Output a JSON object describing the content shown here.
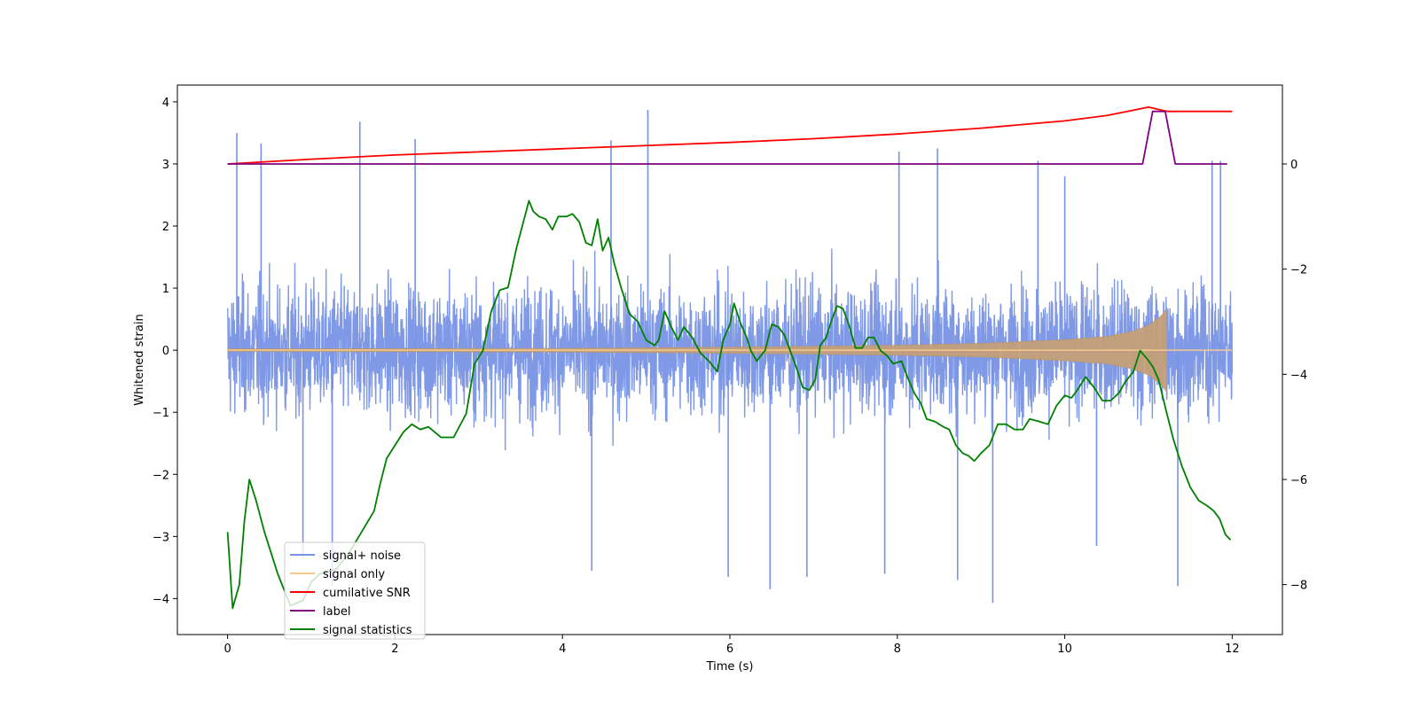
{
  "chart_data": {
    "type": "line",
    "title": "",
    "xlabel": "Time (s)",
    "ylabel": "Whitened strain",
    "xlim": [
      -0.6,
      12.6
    ],
    "ylim": [
      -4.58,
      4.27
    ],
    "y2lim": [
      -8.95,
      1.5
    ],
    "x_ticks": [
      0,
      2,
      4,
      6,
      8,
      10,
      12
    ],
    "y_ticks": [
      4,
      3,
      2,
      1,
      0,
      -1,
      -2,
      -3,
      -4
    ],
    "y2_ticks": [
      0,
      -2,
      -4,
      -6,
      -8
    ],
    "x_tick_labels": [
      "0",
      "2",
      "4",
      "6",
      "8",
      "10",
      "12"
    ],
    "y_tick_labels": [
      "4",
      "3",
      "2",
      "1",
      "0",
      "−1",
      "−2",
      "−3",
      "−4"
    ],
    "y2_tick_labels": [
      "0",
      "−2",
      "−4",
      "−6",
      "−8"
    ],
    "legend": {
      "location": "lower-left",
      "entries": [
        {
          "label": "signal+ noise",
          "color": "#7893e6"
        },
        {
          "label": "signal only",
          "color": "#f5c98c"
        },
        {
          "label": "cumilative SNR",
          "color": "#ff0000"
        },
        {
          "label": "label",
          "color": "#800080"
        },
        {
          "label": "signal statistics",
          "color": "#008000"
        }
      ]
    },
    "series": [
      {
        "name": "signal+ noise",
        "axis": "left",
        "color": "#7893e6",
        "description": "dense noisy strain trace, roughly -2 to 2 with spikes up to about 3.9 and down to about -4.1",
        "spikes": [
          [
            0.11,
            3.5
          ],
          [
            0.4,
            3.33
          ],
          [
            1.58,
            3.68
          ],
          [
            2.24,
            3.4
          ],
          [
            4.58,
            3.38
          ],
          [
            5.02,
            3.87
          ],
          [
            8.02,
            3.2
          ],
          [
            8.48,
            3.25
          ],
          [
            9.68,
            3.05
          ],
          [
            10.0,
            2.8
          ],
          [
            11.76,
            3.05
          ],
          [
            11.86,
            3.05
          ],
          [
            0.9,
            -3.35
          ],
          [
            1.25,
            -3.8
          ],
          [
            4.35,
            -3.55
          ],
          [
            5.98,
            -3.65
          ],
          [
            6.48,
            -3.85
          ],
          [
            6.92,
            -3.65
          ],
          [
            7.85,
            -3.6
          ],
          [
            8.72,
            -3.7
          ],
          [
            9.14,
            -4.07
          ],
          [
            10.38,
            -3.15
          ],
          [
            11.35,
            -3.8
          ]
        ]
      },
      {
        "name": "signal only",
        "axis": "left",
        "color": "#f5c98c",
        "description": "chirp: near-zero amplitude growing to about 0.7 at 11.22 s then zero",
        "envelope": [
          [
            0,
            0.02
          ],
          [
            2,
            0.025
          ],
          [
            4,
            0.03
          ],
          [
            6,
            0.05
          ],
          [
            8,
            0.08
          ],
          [
            9,
            0.11
          ],
          [
            10,
            0.17
          ],
          [
            10.5,
            0.22
          ],
          [
            10.8,
            0.3
          ],
          [
            11.0,
            0.4
          ],
          [
            11.15,
            0.55
          ],
          [
            11.22,
            0.68
          ],
          [
            11.23,
            0
          ],
          [
            12,
            0
          ]
        ]
      },
      {
        "name": "cumilative SNR",
        "axis": "right",
        "color": "#ff0000",
        "points": [
          [
            0,
            0.0
          ],
          [
            1,
            0.09
          ],
          [
            2,
            0.17
          ],
          [
            3,
            0.23
          ],
          [
            4,
            0.29
          ],
          [
            5,
            0.35
          ],
          [
            6,
            0.41
          ],
          [
            7,
            0.48
          ],
          [
            8,
            0.57
          ],
          [
            9,
            0.68
          ],
          [
            10,
            0.82
          ],
          [
            10.5,
            0.92
          ],
          [
            11,
            1.08
          ],
          [
            11.22,
            1.0
          ],
          [
            12,
            1.0
          ]
        ]
      },
      {
        "name": "label",
        "axis": "right",
        "color": "#800080",
        "points": [
          [
            0,
            0
          ],
          [
            10.93,
            0
          ],
          [
            11.05,
            1
          ],
          [
            11.2,
            1
          ],
          [
            11.32,
            0
          ],
          [
            11.94,
            0
          ]
        ]
      },
      {
        "name": "signal statistics",
        "axis": "right",
        "color": "#008000",
        "points": [
          [
            0,
            -7.0
          ],
          [
            0.06,
            -8.45
          ],
          [
            0.14,
            -8.0
          ],
          [
            0.2,
            -6.8
          ],
          [
            0.26,
            -6.0
          ],
          [
            0.34,
            -6.4
          ],
          [
            0.44,
            -7.0
          ],
          [
            0.6,
            -7.8
          ],
          [
            0.75,
            -8.4
          ],
          [
            0.9,
            -8.3
          ],
          [
            1.0,
            -7.95
          ],
          [
            1.1,
            -7.8
          ],
          [
            1.3,
            -7.7
          ],
          [
            1.45,
            -7.4
          ],
          [
            1.6,
            -7.0
          ],
          [
            1.75,
            -6.6
          ],
          [
            1.82,
            -6.1
          ],
          [
            1.9,
            -5.6
          ],
          [
            2.0,
            -5.35
          ],
          [
            2.1,
            -5.1
          ],
          [
            2.2,
            -4.95
          ],
          [
            2.3,
            -5.05
          ],
          [
            2.4,
            -5.0
          ],
          [
            2.55,
            -5.2
          ],
          [
            2.7,
            -5.2
          ],
          [
            2.85,
            -4.75
          ],
          [
            2.95,
            -3.8
          ],
          [
            3.05,
            -3.55
          ],
          [
            3.15,
            -2.8
          ],
          [
            3.25,
            -2.4
          ],
          [
            3.35,
            -2.35
          ],
          [
            3.45,
            -1.6
          ],
          [
            3.55,
            -1.0
          ],
          [
            3.6,
            -0.7
          ],
          [
            3.65,
            -0.9
          ],
          [
            3.72,
            -1.0
          ],
          [
            3.8,
            -1.05
          ],
          [
            3.88,
            -1.25
          ],
          [
            3.95,
            -1.0
          ],
          [
            4.05,
            -1.0
          ],
          [
            4.12,
            -0.95
          ],
          [
            4.2,
            -1.1
          ],
          [
            4.28,
            -1.5
          ],
          [
            4.35,
            -1.55
          ],
          [
            4.42,
            -1.05
          ],
          [
            4.48,
            -1.65
          ],
          [
            4.55,
            -1.4
          ],
          [
            4.62,
            -1.9
          ],
          [
            4.7,
            -2.35
          ],
          [
            4.8,
            -2.85
          ],
          [
            4.9,
            -3.0
          ],
          [
            5.0,
            -3.35
          ],
          [
            5.1,
            -3.45
          ],
          [
            5.15,
            -3.35
          ],
          [
            5.22,
            -2.8
          ],
          [
            5.3,
            -3.1
          ],
          [
            5.38,
            -3.35
          ],
          [
            5.45,
            -3.1
          ],
          [
            5.55,
            -3.3
          ],
          [
            5.65,
            -3.6
          ],
          [
            5.75,
            -3.75
          ],
          [
            5.85,
            -3.95
          ],
          [
            5.92,
            -3.35
          ],
          [
            6.0,
            -3.05
          ],
          [
            6.05,
            -2.65
          ],
          [
            6.12,
            -3.0
          ],
          [
            6.2,
            -3.3
          ],
          [
            6.25,
            -3.55
          ],
          [
            6.32,
            -3.75
          ],
          [
            6.42,
            -3.55
          ],
          [
            6.5,
            -3.05
          ],
          [
            6.58,
            -3.1
          ],
          [
            6.65,
            -3.25
          ],
          [
            6.72,
            -3.55
          ],
          [
            6.8,
            -3.9
          ],
          [
            6.87,
            -4.25
          ],
          [
            6.95,
            -4.3
          ],
          [
            7.02,
            -4.1
          ],
          [
            7.08,
            -3.45
          ],
          [
            7.15,
            -3.3
          ],
          [
            7.22,
            -2.95
          ],
          [
            7.28,
            -2.7
          ],
          [
            7.35,
            -2.75
          ],
          [
            7.42,
            -3.05
          ],
          [
            7.5,
            -3.5
          ],
          [
            7.58,
            -3.5
          ],
          [
            7.65,
            -3.3
          ],
          [
            7.72,
            -3.3
          ],
          [
            7.8,
            -3.55
          ],
          [
            7.88,
            -3.65
          ],
          [
            7.95,
            -3.8
          ],
          [
            8.05,
            -3.75
          ],
          [
            8.12,
            -4.05
          ],
          [
            8.2,
            -4.35
          ],
          [
            8.28,
            -4.55
          ],
          [
            8.35,
            -4.85
          ],
          [
            8.45,
            -4.9
          ],
          [
            8.55,
            -5.0
          ],
          [
            8.62,
            -5.05
          ],
          [
            8.7,
            -5.35
          ],
          [
            8.78,
            -5.5
          ],
          [
            8.85,
            -5.55
          ],
          [
            8.92,
            -5.65
          ],
          [
            9.0,
            -5.5
          ],
          [
            9.1,
            -5.35
          ],
          [
            9.2,
            -4.95
          ],
          [
            9.3,
            -4.95
          ],
          [
            9.4,
            -5.05
          ],
          [
            9.5,
            -5.05
          ],
          [
            9.58,
            -4.85
          ],
          [
            9.7,
            -4.9
          ],
          [
            9.8,
            -4.95
          ],
          [
            9.9,
            -4.6
          ],
          [
            10.0,
            -4.4
          ],
          [
            10.08,
            -4.45
          ],
          [
            10.15,
            -4.3
          ],
          [
            10.25,
            -4.05
          ],
          [
            10.35,
            -4.25
          ],
          [
            10.45,
            -4.5
          ],
          [
            10.55,
            -4.5
          ],
          [
            10.65,
            -4.35
          ],
          [
            10.72,
            -4.15
          ],
          [
            10.82,
            -3.95
          ],
          [
            10.9,
            -3.55
          ],
          [
            10.98,
            -3.7
          ],
          [
            11.05,
            -3.85
          ],
          [
            11.12,
            -4.1
          ],
          [
            11.22,
            -4.75
          ],
          [
            11.3,
            -5.25
          ],
          [
            11.4,
            -5.75
          ],
          [
            11.5,
            -6.15
          ],
          [
            11.6,
            -6.4
          ],
          [
            11.7,
            -6.5
          ],
          [
            11.78,
            -6.6
          ],
          [
            11.85,
            -6.75
          ],
          [
            11.92,
            -7.05
          ],
          [
            11.98,
            -7.15
          ]
        ]
      }
    ]
  }
}
